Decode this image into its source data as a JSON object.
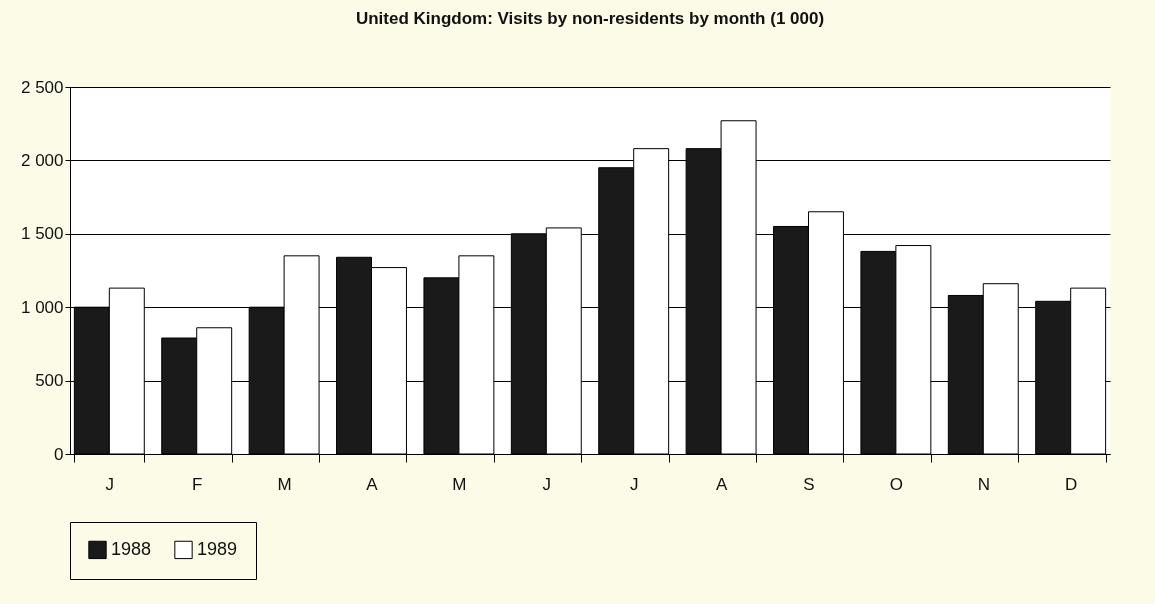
{
  "chart_data": {
    "type": "bar",
    "title": "United Kingdom: Visits by non-residents by month (1 000)",
    "categories": [
      "J",
      "F",
      "M",
      "A",
      "M",
      "J",
      "J",
      "A",
      "S",
      "O",
      "N",
      "D"
    ],
    "series": [
      {
        "name": "1988",
        "color": "#1a1a1a",
        "values": [
          1000,
          790,
          1000,
          1340,
          1200,
          1500,
          1950,
          2080,
          1550,
          1380,
          1080,
          1040
        ]
      },
      {
        "name": "1989",
        "color": "#ffffff",
        "values": [
          1130,
          860,
          1350,
          1270,
          1350,
          1540,
          2080,
          2270,
          1650,
          1420,
          1160,
          1130
        ]
      }
    ],
    "ylim": [
      0,
      2500
    ],
    "yticks": [
      {
        "value": 0,
        "label": "0"
      },
      {
        "value": 500,
        "label": "500"
      },
      {
        "value": 1000,
        "label": "1 000"
      },
      {
        "value": 1500,
        "label": "1 500"
      },
      {
        "value": 2000,
        "label": "2 000"
      },
      {
        "value": 2500,
        "label": "2 500"
      }
    ],
    "grid": "y",
    "legend": "bottom"
  }
}
